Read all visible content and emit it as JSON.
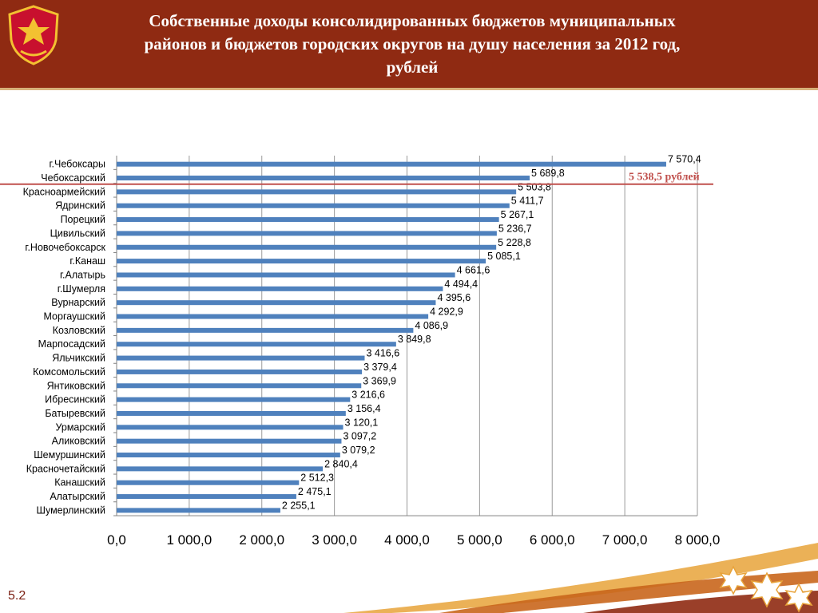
{
  "header": {
    "title": "Собственные доходы консолидированных бюджетов муниципальных\nрайонов и бюджетов городских округов на душу населения за 2012 год,\nрублей",
    "emblem_icon": "chuvashia-coat-of-arms-icon",
    "background_color": "#8f2a12"
  },
  "chart_data": {
    "type": "bar",
    "orientation": "horizontal",
    "categories": [
      "г.Чебоксары",
      "Чебоксарский",
      "Красноармейский",
      "Ядринский",
      "Порецкий",
      "Цивильский",
      "г.Новочебоксарск",
      "г.Канаш",
      "г.Алатырь",
      "г.Шумерля",
      "Вурнарский",
      "Моргаушский",
      "Козловский",
      "Марпосадский",
      "Яльчикский",
      "Комсомольский",
      "Янтиковский",
      "Ибресинский",
      "Батыревский",
      "Урмарский",
      "Аликовский",
      "Шемуршинский",
      "Красночетайский",
      "Канашский",
      "Алатырский",
      "Шумерлинский"
    ],
    "values": [
      7570.4,
      5689.8,
      5503.8,
      5411.7,
      5267.1,
      5236.7,
      5228.8,
      5085.1,
      4661.6,
      4494.4,
      4395.6,
      4292.9,
      4086.9,
      3849.8,
      3416.6,
      3379.4,
      3369.9,
      3216.6,
      3156.4,
      3120.1,
      3097.2,
      3079.2,
      2840.4,
      2512.3,
      2475.1,
      2255.1
    ],
    "value_labels": [
      "7 570,4",
      "5 689,8",
      "5 503,8",
      "5 411,7",
      "5 267,1",
      "5 236,7",
      "5 228,8",
      "5 085,1",
      "4 661,6",
      "4 494,4",
      "4 395,6",
      "4 292,9",
      "4 086,9",
      "3 849,8",
      "3 416,6",
      "3 379,4",
      "3 369,9",
      "3 216,6",
      "3 156,4",
      "3 120,1",
      "3 097,2",
      "3 079,2",
      "2 840,4",
      "2 512,3",
      "2 475,1",
      "2 255,1"
    ],
    "xlim": [
      0,
      8000
    ],
    "xticks": [
      0,
      1000,
      2000,
      3000,
      4000,
      5000,
      6000,
      7000,
      8000
    ],
    "xtick_labels": [
      "0,0",
      "1 000,0",
      "2 000,0",
      "3 000,0",
      "4 000,0",
      "5 000,0",
      "6 000,0",
      "7 000,0",
      "8 000,0"
    ],
    "grid": true,
    "bar_color": "#4f81bd",
    "reference_line": {
      "value": 5538.5,
      "label": "5 538,5 рублей",
      "color": "#c0504d"
    }
  },
  "footer": {
    "slide_number": "5.2"
  }
}
